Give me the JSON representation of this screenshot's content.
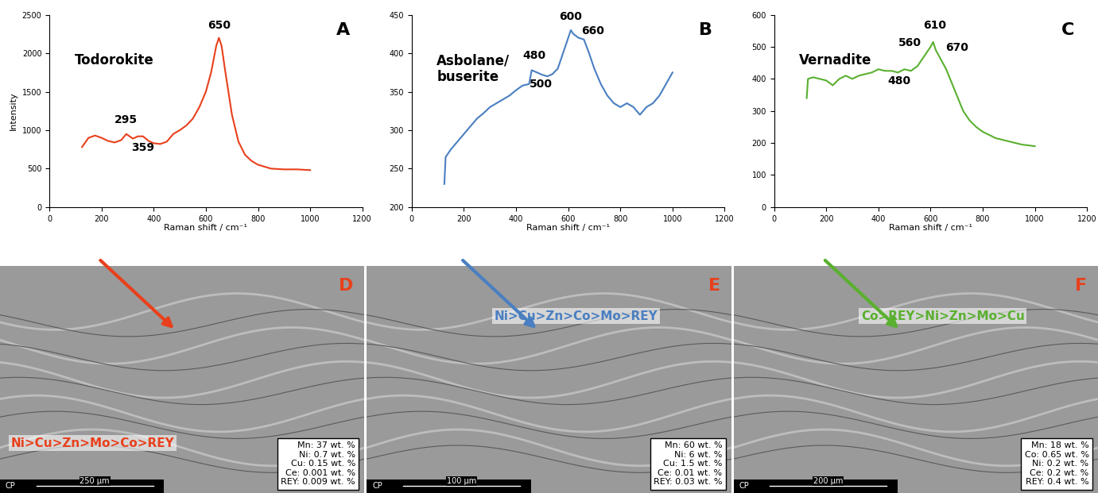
{
  "chart_data": [
    {
      "type": "line",
      "panel": "A",
      "title": "Todorokite",
      "color": "#e8401c",
      "xlabel": "Raman shift / cm⁻¹",
      "ylabel": "Intensity",
      "x": [
        125,
        150,
        175,
        200,
        225,
        250,
        275,
        295,
        320,
        340,
        359,
        380,
        400,
        425,
        450,
        475,
        500,
        525,
        550,
        575,
        600,
        620,
        640,
        650,
        660,
        675,
        700,
        725,
        750,
        775,
        800,
        850,
        900,
        950,
        1000
      ],
      "values": [
        780,
        900,
        930,
        900,
        860,
        840,
        870,
        950,
        890,
        920,
        920,
        860,
        830,
        820,
        850,
        950,
        1000,
        1060,
        1150,
        1300,
        1500,
        1750,
        2100,
        2200,
        2100,
        1750,
        1200,
        850,
        680,
        600,
        550,
        500,
        490,
        490,
        480
      ],
      "xlim": [
        0,
        1200
      ],
      "xticks": [
        0,
        200,
        400,
        600,
        800,
        1000,
        1200
      ],
      "ylim": [
        0,
        2500
      ],
      "yticks": [
        0,
        500,
        1000,
        1500,
        2000,
        2500
      ],
      "annotations": [
        {
          "text": "650",
          "x": 650,
          "y": 2290
        },
        {
          "text": "295",
          "x": 295,
          "y": 1060
        },
        {
          "text": "359",
          "x": 359,
          "y": 700
        }
      ]
    },
    {
      "type": "line",
      "panel": "B",
      "title": "Asbolane/\nbuserite",
      "color": "#4a7fc1",
      "xlabel": "Raman shift / cm⁻¹",
      "x": [
        125,
        130,
        150,
        175,
        200,
        225,
        250,
        275,
        300,
        325,
        350,
        375,
        400,
        425,
        450,
        460,
        480,
        500,
        520,
        540,
        560,
        580,
        600,
        610,
        620,
        640,
        660,
        680,
        700,
        725,
        750,
        775,
        800,
        825,
        850,
        875,
        900,
        925,
        950,
        975,
        1000
      ],
      "values": [
        230,
        265,
        275,
        285,
        295,
        305,
        315,
        322,
        330,
        335,
        340,
        345,
        352,
        358,
        360,
        378,
        375,
        372,
        370,
        373,
        380,
        400,
        420,
        430,
        425,
        420,
        418,
        400,
        380,
        360,
        345,
        335,
        330,
        335,
        330,
        320,
        330,
        335,
        345,
        360,
        375
      ],
      "xlim": [
        0,
        1200
      ],
      "xticks": [
        0,
        200,
        400,
        600,
        800,
        1000,
        1200
      ],
      "ylim": [
        200,
        450
      ],
      "yticks": [
        200,
        250,
        300,
        350,
        400,
        450
      ],
      "annotations": [
        {
          "text": "600",
          "x": 610,
          "y": 440
        },
        {
          "text": "660",
          "x": 695,
          "y": 422
        },
        {
          "text": "480",
          "x": 470,
          "y": 390
        },
        {
          "text": "500",
          "x": 495,
          "y": 353
        }
      ]
    },
    {
      "type": "line",
      "panel": "C",
      "title": "Vernadite",
      "color": "#5ab030",
      "xlabel": "Raman shift / cm⁻¹",
      "x": [
        125,
        130,
        150,
        175,
        200,
        225,
        250,
        275,
        300,
        325,
        350,
        375,
        400,
        425,
        450,
        475,
        500,
        525,
        550,
        575,
        600,
        610,
        620,
        640,
        660,
        680,
        700,
        725,
        750,
        775,
        800,
        850,
        900,
        950,
        1000
      ],
      "values": [
        340,
        400,
        405,
        400,
        395,
        380,
        400,
        410,
        400,
        410,
        415,
        420,
        430,
        425,
        425,
        420,
        430,
        425,
        440,
        470,
        500,
        515,
        490,
        460,
        430,
        390,
        350,
        300,
        270,
        250,
        235,
        215,
        205,
        195,
        190
      ],
      "xlim": [
        0,
        1200
      ],
      "xticks": [
        0,
        200,
        400,
        600,
        800,
        1000,
        1200
      ],
      "ylim": [
        0,
        600
      ],
      "yticks": [
        0,
        100,
        200,
        300,
        400,
        500,
        600
      ],
      "annotations": [
        {
          "text": "610",
          "x": 615,
          "y": 550
        },
        {
          "text": "560",
          "x": 520,
          "y": 495
        },
        {
          "text": "670",
          "x": 700,
          "y": 480
        },
        {
          "text": "480",
          "x": 480,
          "y": 375
        }
      ]
    }
  ],
  "images": [
    {
      "panel": "D",
      "elements": "Ni>Cu>Zn>Mo>Co>REY",
      "color": "#e8401c",
      "composition": [
        "Mn: 37 wt. %",
        "Ni: 0.7 wt. %",
        "Cu: 0.15 wt. %",
        "Ce: 0.001 wt. %",
        "REY: 0.009 wt. %"
      ],
      "detector": "CP",
      "scale": "250 µm"
    },
    {
      "panel": "E",
      "elements": "Ni>Cu>Zn>Co>Mo>REY",
      "color": "#4a7fc1",
      "composition": [
        "Mn: 60 wt. %",
        "Ni: 6 wt. %",
        "Cu: 1.5 wt. %",
        "Ce: 0.01 wt. %",
        "REY: 0.03 wt. %"
      ],
      "detector": "CP",
      "scale": "100 µm"
    },
    {
      "panel": "F",
      "elements": "Co>REY>Ni>Zn>Mo>Cu",
      "color": "#5ab030",
      "composition": [
        "Mn: 18 wt. %",
        "Co: 0.65 wt. %",
        "Ni: 0.2 wt. %",
        "Ce: 0.2 wt. %",
        "REY: 0.4 wt. %"
      ],
      "detector": "CP",
      "scale": "200 µm"
    }
  ]
}
